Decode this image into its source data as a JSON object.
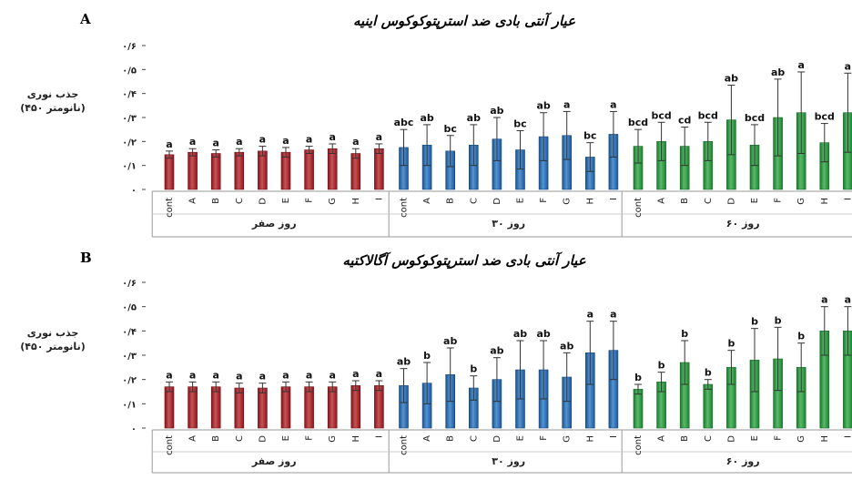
{
  "ylabel": [
    "جذب نوری",
    "(۴۵۰ نانومتر)"
  ],
  "colors": {
    "day0": "#b3191f",
    "day30": "#1e6fc0",
    "day60": "#22a33a"
  },
  "chart_data": [
    {
      "panel": "A",
      "type": "bar",
      "title": "عیار آنتی بادی ضد استرپتوکوکوس اینیه",
      "ylabel": "جذب نوری (۴۵۰ نانومتر)",
      "ylim": [
        0,
        0.6
      ],
      "yticks": [
        "۰",
        "۰/۱",
        "۰/۲",
        "۰/۳",
        "۰/۴",
        "۰/۵",
        "۰/۶"
      ],
      "categories": [
        "cont",
        "A",
        "B",
        "C",
        "D",
        "E",
        "F",
        "G",
        "H",
        "I"
      ],
      "groups": [
        {
          "name": "روز صفر",
          "values": [
            0.145,
            0.155,
            0.15,
            0.155,
            0.16,
            0.155,
            0.165,
            0.17,
            0.15,
            0.17
          ],
          "errors": [
            0.015,
            0.015,
            0.015,
            0.015,
            0.02,
            0.02,
            0.015,
            0.02,
            0.02,
            0.02
          ],
          "letters": [
            "a",
            "a",
            "a",
            "a",
            "a",
            "a",
            "a",
            "a",
            "a",
            "a"
          ]
        },
        {
          "name": "روز ۳۰",
          "values": [
            0.175,
            0.185,
            0.16,
            0.185,
            0.21,
            0.165,
            0.22,
            0.225,
            0.135,
            0.23
          ],
          "errors": [
            0.075,
            0.085,
            0.065,
            0.085,
            0.09,
            0.08,
            0.1,
            0.1,
            0.06,
            0.095
          ],
          "letters": [
            "abc",
            "ab",
            "bc",
            "ab",
            "ab",
            "bc",
            "ab",
            "a",
            "bc",
            "a"
          ]
        },
        {
          "name": "روز ۶۰",
          "values": [
            0.18,
            0.2,
            0.18,
            0.2,
            0.29,
            0.185,
            0.3,
            0.32,
            0.195,
            0.32
          ],
          "errors": [
            0.07,
            0.08,
            0.08,
            0.08,
            0.145,
            0.085,
            0.16,
            0.17,
            0.08,
            0.165
          ],
          "letters": [
            "bcd",
            "bcd",
            "cd",
            "bcd",
            "ab",
            "bcd",
            "ab",
            "a",
            "bcd",
            "a"
          ]
        }
      ]
    },
    {
      "panel": "B",
      "type": "bar",
      "title": "عیار آنتی بادی ضد استرپتوکوکوس آگالاکتیه",
      "ylabel": "جذب نوری (۴۵۰ نانومتر)",
      "ylim": [
        0,
        0.6
      ],
      "yticks": [
        "۰",
        "۰/۱",
        "۰/۲",
        "۰/۳",
        "۰/۴",
        "۰/۵",
        "۰/۶"
      ],
      "categories": [
        "cont",
        "A",
        "B",
        "C",
        "D",
        "E",
        "F",
        "G",
        "H",
        "I"
      ],
      "groups": [
        {
          "name": "روز صفر",
          "values": [
            0.17,
            0.17,
            0.17,
            0.165,
            0.165,
            0.17,
            0.17,
            0.17,
            0.175,
            0.175
          ],
          "errors": [
            0.02,
            0.02,
            0.02,
            0.02,
            0.02,
            0.02,
            0.02,
            0.02,
            0.02,
            0.02
          ],
          "letters": [
            "a",
            "a",
            "a",
            "a",
            "a",
            "a",
            "a",
            "a",
            "a",
            "a"
          ]
        },
        {
          "name": "روز ۳۰",
          "values": [
            0.175,
            0.185,
            0.22,
            0.165,
            0.2,
            0.24,
            0.24,
            0.21,
            0.31,
            0.32
          ],
          "errors": [
            0.07,
            0.085,
            0.11,
            0.05,
            0.09,
            0.12,
            0.12,
            0.1,
            0.13,
            0.12
          ],
          "letters": [
            "ab",
            "b",
            "ab",
            "b",
            "ab",
            "ab",
            "ab",
            "ab",
            "a",
            "a"
          ]
        },
        {
          "name": "روز ۶۰",
          "values": [
            0.16,
            0.19,
            0.27,
            0.18,
            0.25,
            0.28,
            0.285,
            0.25,
            0.4,
            0.4
          ],
          "errors": [
            0.02,
            0.04,
            0.09,
            0.02,
            0.07,
            0.13,
            0.13,
            0.1,
            0.1,
            0.1
          ],
          "letters": [
            "b",
            "b",
            "b",
            "b",
            "b",
            "b",
            "b",
            "b",
            "a",
            "a"
          ]
        }
      ]
    }
  ]
}
